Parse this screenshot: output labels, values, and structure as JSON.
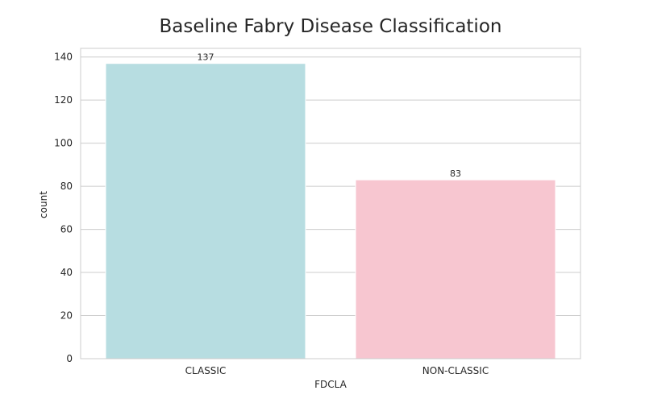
{
  "chart_data": {
    "type": "bar",
    "title": "Baseline Fabry Disease Classification",
    "xlabel": "FDCLA",
    "ylabel": "count",
    "categories": [
      "CLASSIC",
      "NON-CLASSIC"
    ],
    "values": [
      137,
      83
    ],
    "data_labels": [
      "137",
      "83"
    ],
    "colors": [
      "#b7dde1",
      "#f7c6d0"
    ],
    "ylim": [
      0,
      144
    ],
    "yticks": [
      0,
      20,
      40,
      60,
      80,
      100,
      120,
      140
    ],
    "grid": true
  }
}
